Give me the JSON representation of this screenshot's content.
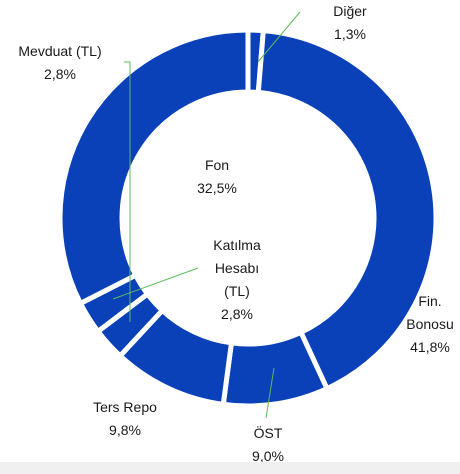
{
  "chart_data": {
    "type": "donut",
    "categories": [
      "Diğer",
      "Fin. Bonosu",
      "ÖST",
      "Ters Repo",
      "Mevduat (TL)",
      "Katılma Hesabı (TL)",
      "Fon"
    ],
    "values": [
      1.3,
      41.8,
      9.0,
      9.8,
      2.8,
      2.8,
      32.5
    ],
    "value_labels": [
      "1,3%",
      "41,8%",
      "9,0%",
      "9,8%",
      "2,8%",
      "2,8%",
      "32,5%"
    ],
    "color": "#0a41b8"
  }
}
